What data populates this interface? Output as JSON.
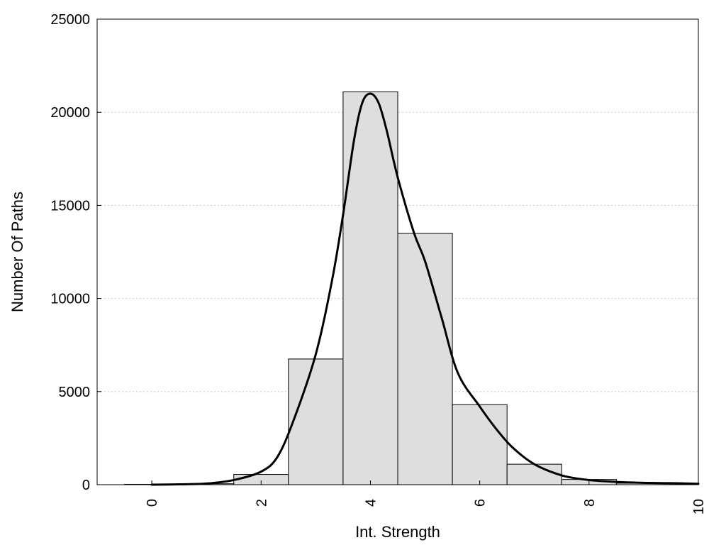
{
  "chart_data": {
    "type": "bar",
    "title": "",
    "xlabel": "Int. Strength",
    "ylabel": "Number Of Paths",
    "xlim": [
      -1,
      10
    ],
    "ylim": [
      0,
      25000
    ],
    "xticks": [
      "0",
      "2",
      "4",
      "6",
      "8",
      "10"
    ],
    "yticks": [
      "0",
      "5000",
      "10000",
      "15000",
      "20000",
      "25000"
    ],
    "grid": "horizontal dotted",
    "legend": "none",
    "bars": {
      "centers": [
        0,
        1,
        2,
        3,
        4,
        5,
        6,
        7,
        8,
        9
      ],
      "values": [
        20,
        50,
        550,
        6750,
        21100,
        13500,
        4300,
        1100,
        280,
        80
      ]
    },
    "curve": {
      "x": [
        0,
        0.5,
        1,
        1.5,
        2,
        2.3,
        2.6,
        3,
        3.3,
        3.5,
        3.7,
        3.85,
        4,
        4.15,
        4.3,
        4.5,
        4.8,
        5,
        5.3,
        5.6,
        6,
        6.3,
        6.6,
        7,
        7.5,
        8,
        8.5,
        9,
        9.5,
        10
      ],
      "y": [
        0,
        20,
        60,
        250,
        700,
        1500,
        3500,
        7000,
        11000,
        14500,
        18500,
        20500,
        21000,
        20500,
        19000,
        16500,
        13500,
        12000,
        9000,
        6000,
        4200,
        3000,
        2000,
        1100,
        500,
        250,
        150,
        100,
        80,
        50
      ]
    }
  },
  "colors": {
    "bar_fill": "#dedede",
    "bar_stroke": "#000000",
    "curve": "#000000",
    "grid": "#cccccc"
  }
}
